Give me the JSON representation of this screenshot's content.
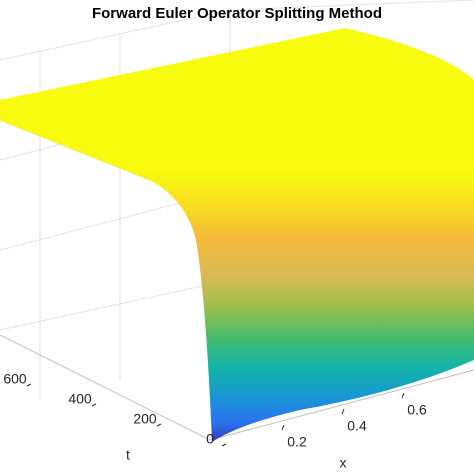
{
  "chart_data": {
    "type": "surface",
    "title": "Forward Euler Operator Splitting Method",
    "xlabel": "x",
    "ylabel": "t",
    "xlim": [
      0,
      1
    ],
    "xticks": [
      0.2,
      0.4,
      0.6
    ],
    "ylim": [
      0,
      800
    ],
    "yticks": [
      0,
      200,
      400,
      600
    ],
    "grid": true
  }
}
